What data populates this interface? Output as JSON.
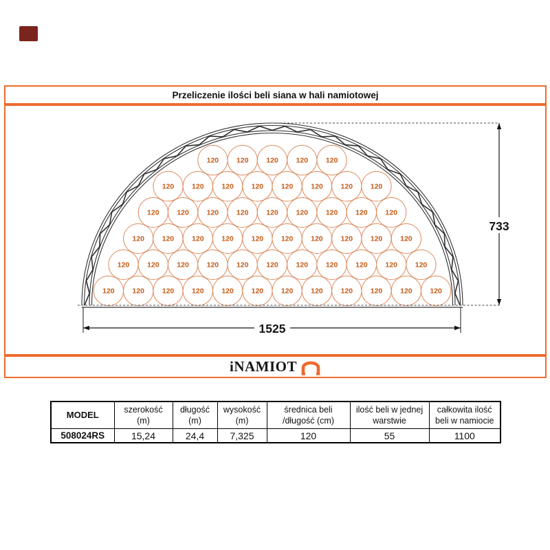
{
  "title_box": {
    "title": "Przeliczenie ilości beli siana w hali namiotowej"
  },
  "stamp": {
    "color": "#7a241d"
  },
  "diagram": {
    "type": "packing-cross-section",
    "bale_label": "120",
    "rows": [
      5,
      8,
      9,
      10,
      11,
      12
    ],
    "bales_per_layer_total": 55,
    "height_dim": "733",
    "width_dim": "1525",
    "colors": {
      "border": "#ED6B2D",
      "circle": "#DB8A5E",
      "label": "#C45A15",
      "truss": "#2E2E2E",
      "dimension": "#141414"
    }
  },
  "brand": {
    "name": "iNAMIOT",
    "logo": "tent-arch-icon",
    "color": "#ED6B2D"
  },
  "table": {
    "headers": [
      [
        "MODEL",
        ""
      ],
      [
        "szerokość",
        "(m)"
      ],
      [
        "długość",
        "(m)"
      ],
      [
        "wysokość",
        "(m)"
      ],
      [
        "średnica beli",
        "/długość (cm)"
      ],
      [
        "ilość beli w jednej",
        "warstwie"
      ],
      [
        "całkowita ilość",
        "beli w namiocie"
      ]
    ],
    "row": [
      "508024RS",
      "15,24",
      "24,4",
      "7,325",
      "120",
      "55",
      "1100"
    ]
  }
}
